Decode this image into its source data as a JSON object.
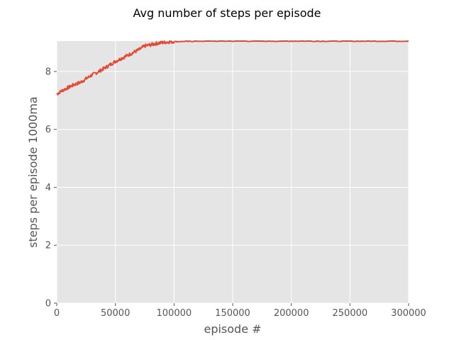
{
  "chart_data": {
    "type": "line",
    "title": "Avg number of steps per episode",
    "xlabel": "episode #",
    "ylabel": "steps per episode 1000ma",
    "xlim": [
      0,
      300000
    ],
    "ylim": [
      0,
      9.05
    ],
    "xticks": [
      0,
      50000,
      100000,
      150000,
      200000,
      250000,
      300000
    ],
    "xtick_labels": [
      "0",
      "50000",
      "100000",
      "150000",
      "200000",
      "250000",
      "300000"
    ],
    "yticks": [
      0,
      2,
      4,
      6,
      8
    ],
    "ytick_labels": [
      "0",
      "2",
      "4",
      "6",
      "8"
    ],
    "grid": true,
    "background": "#e5e5e5",
    "series": [
      {
        "color": "#e24a33",
        "x": [
          0,
          5000,
          10000,
          15000,
          20000,
          25000,
          30000,
          35000,
          40000,
          45000,
          50000,
          55000,
          60000,
          65000,
          70000,
          75000,
          80000,
          85000,
          90000,
          95000,
          100000,
          110000,
          120000,
          140000,
          160000,
          180000,
          200000,
          220000,
          240000,
          260000,
          280000,
          300000
        ],
        "y": [
          7.22,
          7.35,
          7.45,
          7.55,
          7.62,
          7.75,
          7.88,
          7.98,
          8.1,
          8.22,
          8.35,
          8.45,
          8.55,
          8.65,
          8.75,
          8.88,
          8.92,
          8.97,
          9.0,
          9.02,
          9.03,
          9.04,
          9.05,
          9.05,
          9.05,
          9.05,
          9.05,
          9.05,
          9.05,
          9.05,
          9.05,
          9.05
        ]
      }
    ]
  }
}
